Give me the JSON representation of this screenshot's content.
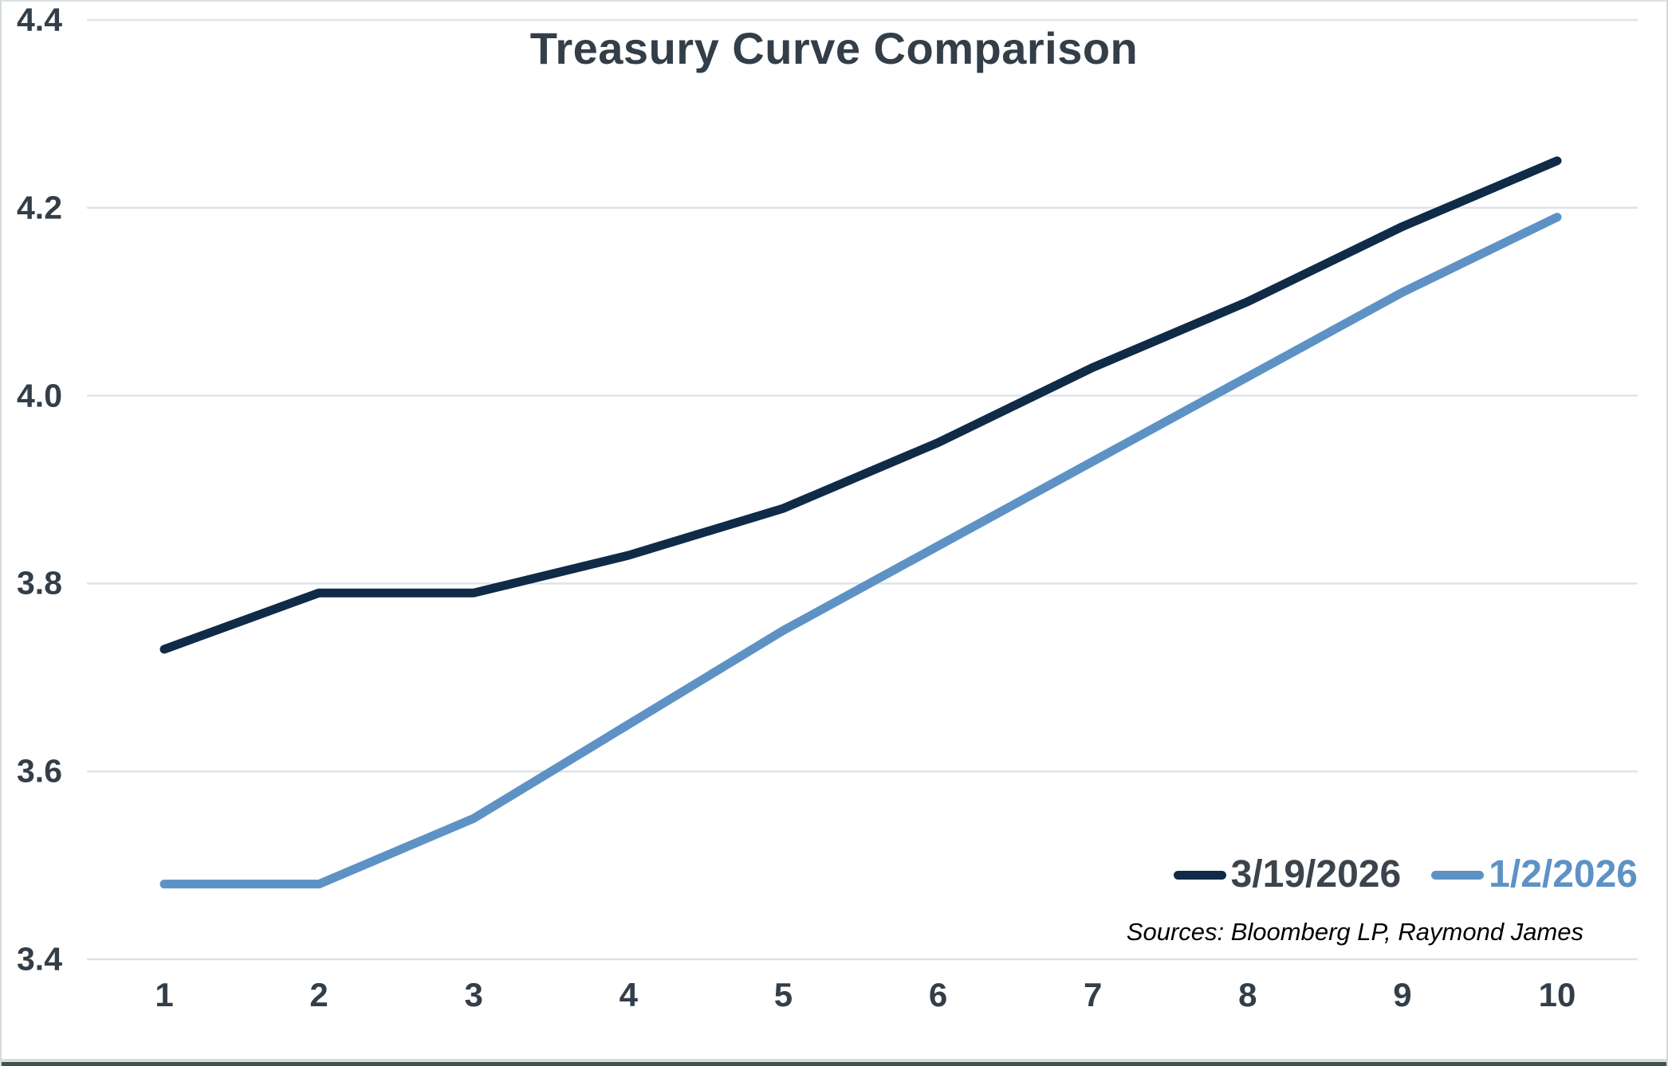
{
  "title": "Treasury Curve Comparison",
  "source_note": "Sources: Bloomberg LP, Raymond James",
  "legend": [
    {
      "label": "3/19/2026",
      "line_color": "#0f2b48",
      "text_color": "#3b444d"
    },
    {
      "label": "1/2/2026",
      "line_color": "#5e92c5",
      "text_color": "#5e92c5"
    }
  ],
  "colors": {
    "title_text": "#333e48",
    "axis_text": "#333e48",
    "gridline": "#dde4e9",
    "series_dark": "#0f2b48",
    "series_blue": "#5e92c5",
    "frame_border": "#d3dbdf",
    "bottom_bar": "#3f5347"
  },
  "chart_data": {
    "type": "line",
    "title": "Treasury Curve Comparison",
    "xlabel": "",
    "ylabel": "",
    "x": [
      1,
      2,
      3,
      4,
      5,
      6,
      7,
      8,
      9,
      10
    ],
    "xtick_labels": [
      "1",
      "2",
      "3",
      "4",
      "5",
      "6",
      "7",
      "8",
      "9",
      "10"
    ],
    "xlim": [
      0.5,
      10.5
    ],
    "ylim": [
      3.4,
      4.4
    ],
    "yticks": [
      3.4,
      3.6,
      3.8,
      4.0,
      4.2,
      4.4
    ],
    "ytick_labels": [
      "3.4",
      "3.6",
      "3.8",
      "4.0",
      "4.2",
      "4.4"
    ],
    "grid": "horizontal",
    "legend_position": "inside-bottom-right",
    "series": [
      {
        "name": "3/19/2026",
        "color": "#0f2b48",
        "values": [
          3.73,
          3.79,
          3.79,
          3.83,
          3.88,
          3.95,
          4.03,
          4.1,
          4.18,
          4.25
        ]
      },
      {
        "name": "1/2/2026",
        "color": "#5e92c5",
        "values": [
          3.48,
          3.48,
          3.55,
          3.65,
          3.75,
          3.84,
          3.93,
          4.02,
          4.11,
          4.19
        ]
      }
    ]
  }
}
